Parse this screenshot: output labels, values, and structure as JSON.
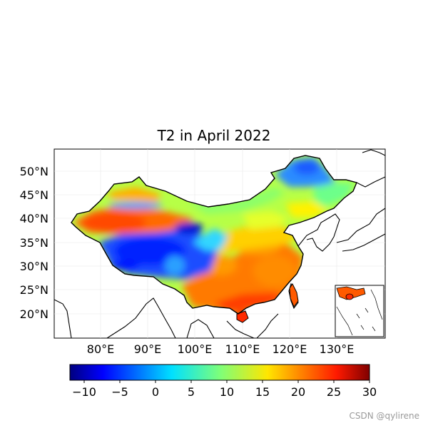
{
  "title": "T2 in April 2022",
  "map": {
    "lat_ticks": [
      "50°N",
      "45°N",
      "40°N",
      "35°N",
      "30°N",
      "25°N",
      "20°N"
    ],
    "lon_ticks": [
      "80°E",
      "90°E",
      "100°E",
      "110°E",
      "120°E",
      "130°E"
    ],
    "lon_range": [
      70,
      140
    ],
    "lat_range": [
      15,
      55
    ],
    "grid": true,
    "inset": "South China Sea"
  },
  "colorbar": {
    "min": -12,
    "max": 30,
    "ticks": [
      "−10",
      "−5",
      "0",
      "5",
      "10",
      "15",
      "20",
      "25",
      "30"
    ],
    "tick_values": [
      -10,
      -5,
      0,
      5,
      10,
      15,
      20,
      25,
      30
    ],
    "colormap": "jet"
  },
  "watermark": "CSDN @qylirene"
}
